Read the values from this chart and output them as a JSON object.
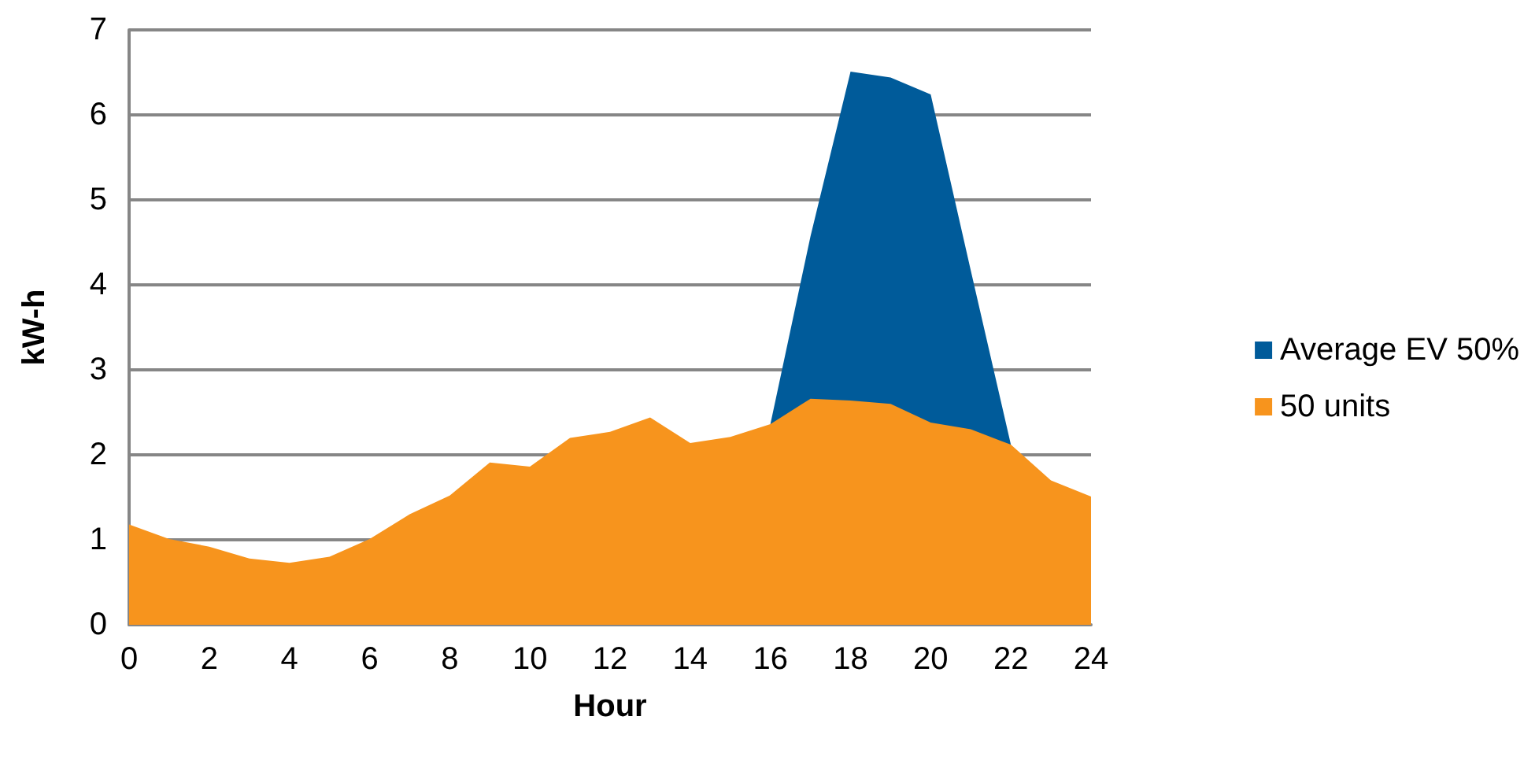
{
  "chart_data": {
    "type": "area",
    "xlabel": "Hour",
    "ylabel": "kW-h",
    "x": [
      0,
      1,
      2,
      3,
      4,
      5,
      6,
      7,
      8,
      9,
      10,
      11,
      12,
      13,
      14,
      15,
      16,
      17,
      18,
      19,
      20,
      21,
      22,
      23,
      24
    ],
    "series": [
      {
        "name": "Average EV 50%",
        "color": "#005b9a",
        "values": [
          null,
          null,
          null,
          null,
          null,
          null,
          null,
          null,
          null,
          null,
          null,
          null,
          null,
          null,
          null,
          null,
          2.36,
          4.57,
          6.51,
          6.44,
          6.24,
          4.17,
          2.12,
          null,
          null
        ]
      },
      {
        "name": "50 units",
        "color": "#f7941d",
        "values": [
          1.18,
          1.01,
          0.92,
          0.78,
          0.73,
          0.8,
          1.01,
          1.3,
          1.52,
          1.91,
          1.86,
          2.2,
          2.27,
          2.44,
          2.14,
          2.21,
          2.36,
          2.66,
          2.64,
          2.6,
          2.38,
          2.3,
          2.12,
          1.7,
          1.51
        ]
      }
    ],
    "xlim": [
      0,
      24
    ],
    "xticks": [
      0,
      2,
      4,
      6,
      8,
      10,
      12,
      14,
      16,
      18,
      20,
      22,
      24
    ],
    "ylim": [
      0,
      7
    ],
    "yticks": [
      0,
      1,
      2,
      3,
      4,
      5,
      6,
      7
    ],
    "grid": "y",
    "legend": "right"
  }
}
